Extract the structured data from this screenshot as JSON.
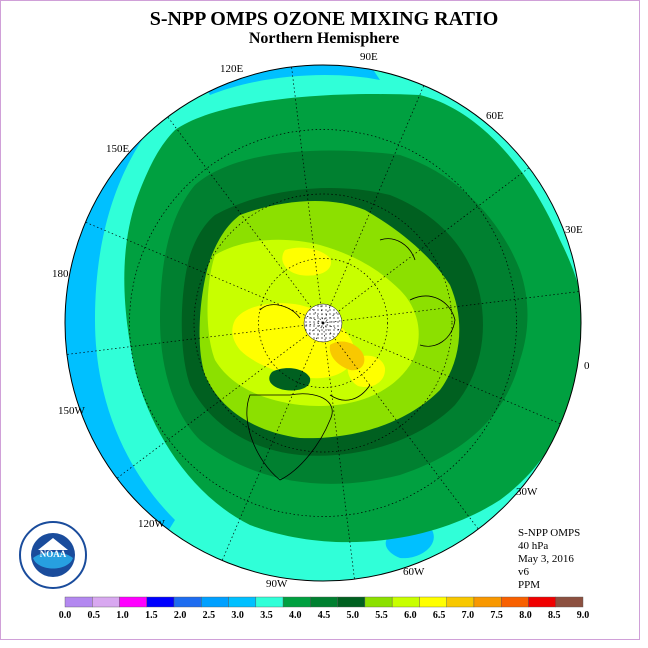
{
  "title": "S-NPP OMPS OZONE MIXING RATIO",
  "subtitle": "Northern Hemisphere",
  "longitude_labels": {
    "lon_90E": "90E",
    "lon_60E": "60E",
    "lon_30E": "30E",
    "lon_0": "0",
    "lon_30W": "30W",
    "lon_60W": "60W",
    "lon_90W": "90W",
    "lon_120W": "120W",
    "lon_150W": "150W",
    "lon_180": "180",
    "lon_150E": "150E",
    "lon_120E": "120E"
  },
  "info": {
    "instrument": "S-NPP OMPS",
    "level": "40 hPa",
    "date": "May 3, 2016",
    "version": "v6",
    "units": "PPM"
  },
  "logo_text": "NOAA",
  "colorbar": {
    "ticks": [
      "0.0",
      "0.5",
      "1.0",
      "1.5",
      "2.0",
      "2.5",
      "3.0",
      "3.5",
      "4.0",
      "4.5",
      "5.0",
      "5.5",
      "6.0",
      "6.5",
      "7.0",
      "7.5",
      "8.0",
      "8.5",
      "9.0"
    ],
    "colors": [
      "#b388f0",
      "#d8a8f0",
      "#ff00ff",
      "#0000ff",
      "#1e6cf0",
      "#00a0ff",
      "#00c0ff",
      "#30ffd8",
      "#00a040",
      "#008030",
      "#006020",
      "#8ce000",
      "#c8ff00",
      "#ffff00",
      "#f8c800",
      "#f89800",
      "#f86000",
      "#f00000",
      "#8c5040"
    ]
  }
}
